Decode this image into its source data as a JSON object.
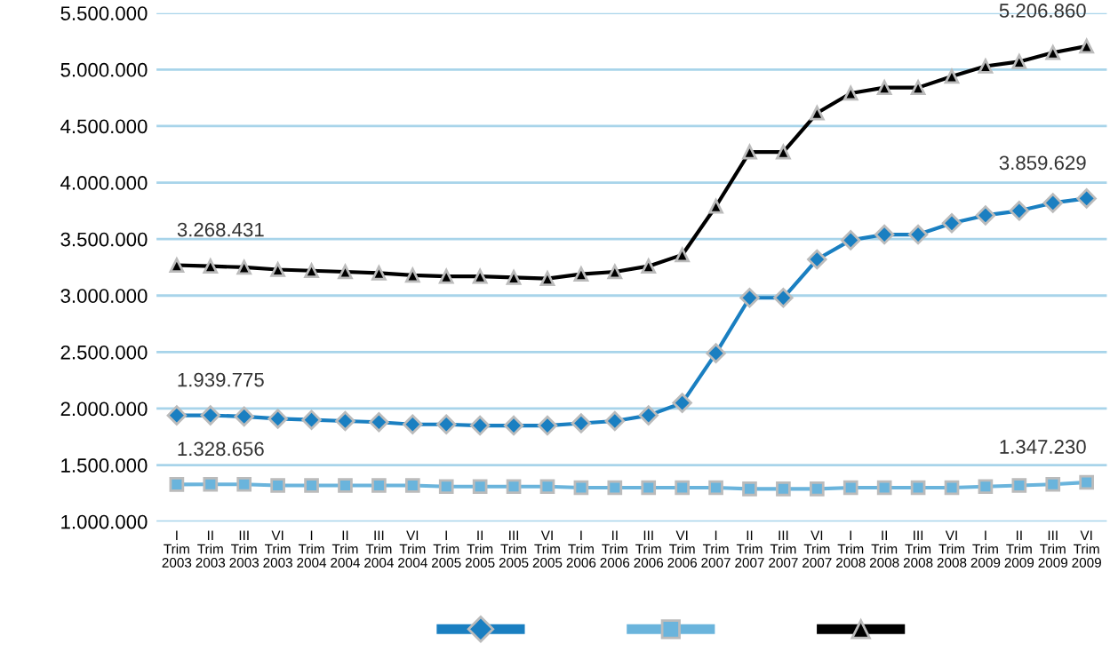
{
  "chart_data": {
    "type": "line",
    "categories": [
      "I\nTrim\n2003",
      "II\nTrim\n2003",
      "III\nTrim\n2003",
      "VI\nTrim\n2003",
      "I\nTrim\n2004",
      "II\nTrim\n2004",
      "III\nTrim\n2004",
      "VI\nTrim\n2004",
      "I\nTrim\n2005",
      "II\nTrim\n2005",
      "III\nTrim\n2005",
      "VI\nTrim\n2005",
      "I\nTrim\n2006",
      "II\nTrim\n2006",
      "III\nTrim\n2006",
      "VI\nTrim\n2006",
      "I\nTrim\n2007",
      "II\nTrim\n2007",
      "III\nTrim\n2007",
      "VI\nTrim\n2007",
      "I\nTrim\n2008",
      "II\nTrim\n2008",
      "III\nTrim\n2008",
      "VI\nTrim\n2008",
      "I\nTrim\n2009",
      "II\nTrim\n2009",
      "III\nTrim\n2009",
      "VI\nTrim\n2009"
    ],
    "series": [
      {
        "color": "#1a7fc1",
        "marker": "diamond",
        "values": [
          1939775,
          1940000,
          1930000,
          1910000,
          1900000,
          1890000,
          1880000,
          1860000,
          1860000,
          1850000,
          1850000,
          1850000,
          1870000,
          1890000,
          1940000,
          2050000,
          2490000,
          2980000,
          2980000,
          3320000,
          3490000,
          3540000,
          3540000,
          3640000,
          3710000,
          3750000,
          3820000,
          3859629
        ],
        "value_labels": [
          "1.939.775",
          null,
          null,
          null,
          null,
          null,
          null,
          null,
          null,
          null,
          null,
          null,
          null,
          null,
          null,
          null,
          null,
          null,
          null,
          null,
          null,
          null,
          null,
          null,
          null,
          null,
          null,
          "3.859.629"
        ]
      },
      {
        "color": "#6ab4dc",
        "marker": "square",
        "values": [
          1328656,
          1330000,
          1330000,
          1320000,
          1320000,
          1320000,
          1320000,
          1320000,
          1310000,
          1310000,
          1310000,
          1310000,
          1300000,
          1300000,
          1300000,
          1300000,
          1300000,
          1290000,
          1290000,
          1290000,
          1300000,
          1300000,
          1300000,
          1300000,
          1310000,
          1320000,
          1330000,
          1347230
        ],
        "value_labels": [
          "1.328.656",
          null,
          null,
          null,
          null,
          null,
          null,
          null,
          null,
          null,
          null,
          null,
          null,
          null,
          null,
          null,
          null,
          null,
          null,
          null,
          null,
          null,
          null,
          null,
          null,
          null,
          null,
          "1.347.230"
        ]
      },
      {
        "color": "#000000",
        "marker": "triangle",
        "values": [
          3268431,
          3260000,
          3250000,
          3230000,
          3220000,
          3210000,
          3200000,
          3180000,
          3170000,
          3170000,
          3160000,
          3150000,
          3190000,
          3210000,
          3260000,
          3360000,
          3790000,
          4270000,
          4270000,
          4615000,
          4790000,
          4840000,
          4840000,
          4940000,
          5030000,
          5070000,
          5150000,
          5206860
        ],
        "value_labels": [
          "3.268.431",
          null,
          null,
          null,
          null,
          null,
          null,
          null,
          null,
          null,
          null,
          null,
          null,
          null,
          null,
          null,
          null,
          null,
          null,
          null,
          null,
          null,
          null,
          null,
          null,
          null,
          null,
          "5.206.860"
        ]
      }
    ],
    "ylim": [
      1000000,
      5500000
    ],
    "yticks": [
      {
        "value": 1000000,
        "label": "1.000.000"
      },
      {
        "value": 1500000,
        "label": "1.500.000"
      },
      {
        "value": 2000000,
        "label": "2.000.000"
      },
      {
        "value": 2500000,
        "label": "2.500.000"
      },
      {
        "value": 3000000,
        "label": "3.000.000"
      },
      {
        "value": 3500000,
        "label": "3.500.000"
      },
      {
        "value": 4000000,
        "label": "4.000.000"
      },
      {
        "value": 4500000,
        "label": "4.500.000"
      },
      {
        "value": 5000000,
        "label": "5.000.000"
      },
      {
        "value": 5500000,
        "label": "5.500.000"
      }
    ],
    "grid": "y",
    "line_style": "solid"
  }
}
